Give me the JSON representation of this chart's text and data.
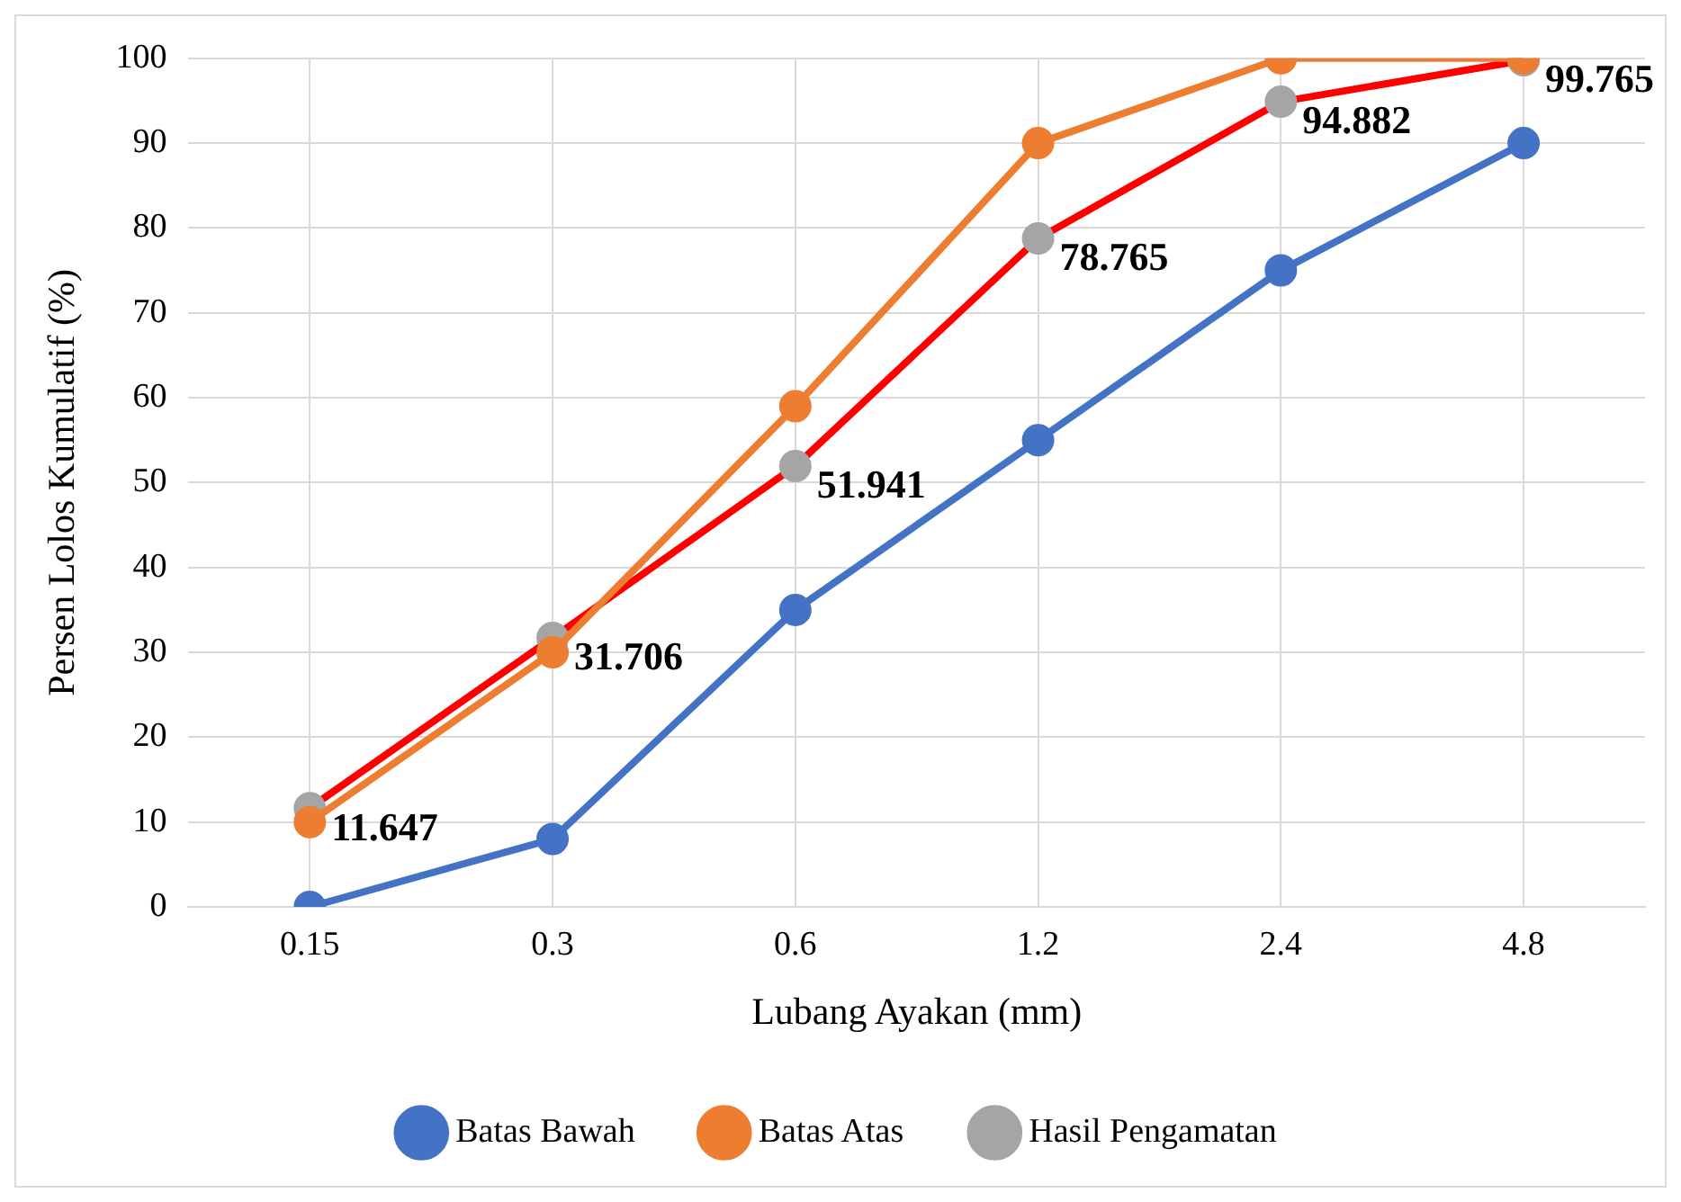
{
  "chart_data": {
    "type": "line",
    "xlabel": "Lubang Ayakan (mm)",
    "ylabel": "Persen Lolos Kumulatif (%)",
    "categories": [
      "0.15",
      "0.3",
      "0.6",
      "1.2",
      "2.4",
      "4.8"
    ],
    "series": [
      {
        "name": "Batas Bawah",
        "color": "#4472c4",
        "values": [
          0,
          8,
          35,
          55,
          75,
          90
        ]
      },
      {
        "name": "Batas Atas",
        "color": "#ed7d31",
        "values": [
          10,
          30,
          59,
          90,
          100,
          100
        ]
      },
      {
        "name": "Hasil Pengamatan",
        "color": "#ff0000",
        "values": [
          11.647,
          31.706,
          51.941,
          78.765,
          94.882,
          99.765
        ],
        "value_labels": [
          "11.647",
          "31.706",
          "51.941",
          "78.765",
          "94.882",
          "99.765"
        ]
      }
    ],
    "ylim": [
      0,
      100
    ],
    "yticks": [
      0,
      10,
      20,
      30,
      40,
      50,
      60,
      70,
      80,
      90,
      100
    ],
    "grid": true,
    "legend": "bottom",
    "marker": "circle"
  }
}
